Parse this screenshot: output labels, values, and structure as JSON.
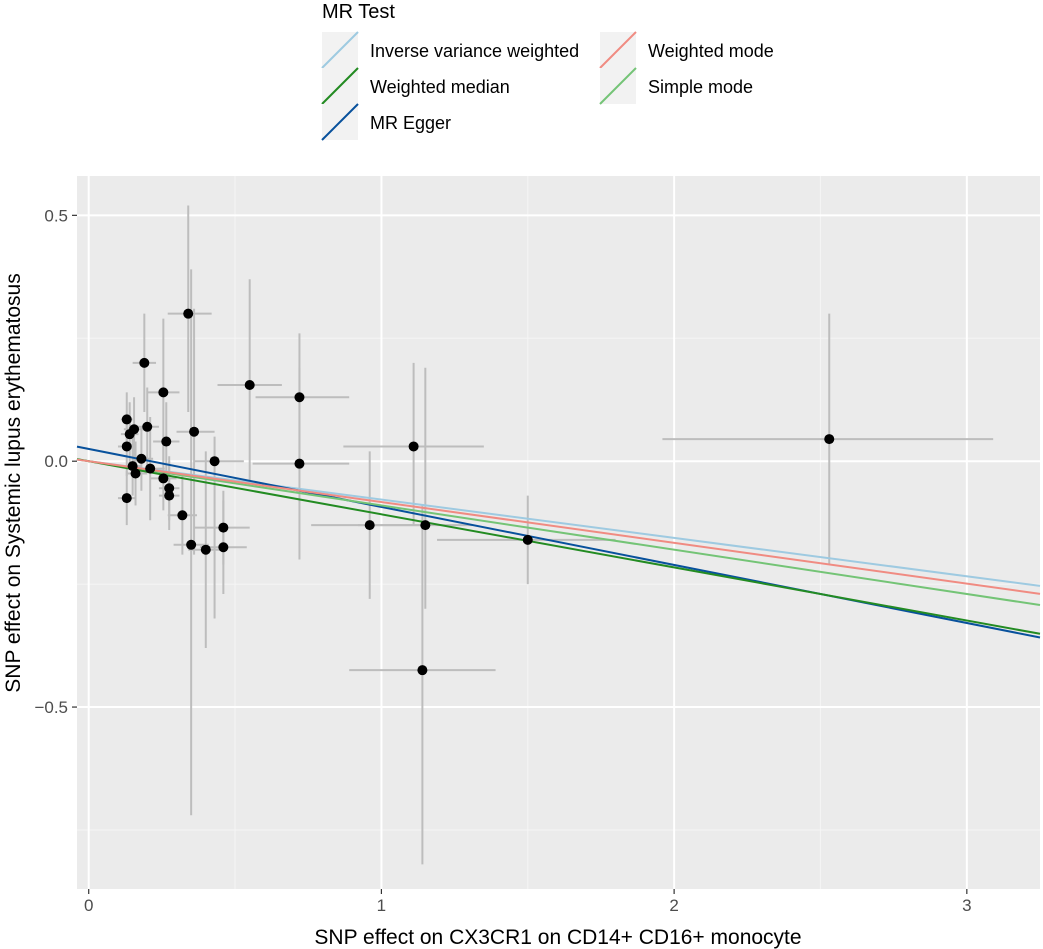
{
  "chart_data": {
    "type": "scatter",
    "title": "",
    "xlabel": "SNP effect on CX3CR1 on CD14+ CD16+ monocyte",
    "ylabel": "SNP effect on Systemic lupus erythematosus",
    "xlim": [
      -0.04,
      3.25
    ],
    "ylim": [
      -0.87,
      0.58
    ],
    "x_ticks": [
      0,
      1,
      2,
      3
    ],
    "x_tick_labels": [
      "0",
      "1",
      "2",
      "3"
    ],
    "y_ticks": [
      0.5,
      0.0,
      -0.5
    ],
    "y_tick_labels": [
      "0.5",
      "0.0",
      "−0.5"
    ],
    "grid": true,
    "legend_position": "top",
    "legend_title": "MR Test",
    "error_bar_color": "#bdbdbd",
    "point_color": "#000000",
    "panel_background": "#ebebeb",
    "points": [
      {
        "x": 0.13,
        "y": 0.085,
        "x_lo": 0.11,
        "x_hi": 0.15,
        "y_lo": 0.02,
        "y_hi": 0.14
      },
      {
        "x": 0.14,
        "y": 0.055,
        "x_lo": 0.11,
        "x_hi": 0.17,
        "y_lo": -0.01,
        "y_hi": 0.12
      },
      {
        "x": 0.13,
        "y": 0.03,
        "x_lo": 0.1,
        "x_hi": 0.16,
        "y_lo": -0.03,
        "y_hi": 0.09
      },
      {
        "x": 0.155,
        "y": 0.065,
        "x_lo": 0.12,
        "x_hi": 0.19,
        "y_lo": 0.0,
        "y_hi": 0.13
      },
      {
        "x": 0.13,
        "y": -0.075,
        "x_lo": 0.1,
        "x_hi": 0.16,
        "y_lo": -0.13,
        "y_hi": -0.02
      },
      {
        "x": 0.15,
        "y": -0.01,
        "x_lo": 0.12,
        "x_hi": 0.18,
        "y_lo": -0.07,
        "y_hi": 0.05
      },
      {
        "x": 0.16,
        "y": -0.025,
        "x_lo": 0.13,
        "x_hi": 0.2,
        "y_lo": -0.09,
        "y_hi": 0.04
      },
      {
        "x": 0.18,
        "y": 0.005,
        "x_lo": 0.15,
        "x_hi": 0.22,
        "y_lo": -0.06,
        "y_hi": 0.07
      },
      {
        "x": 0.19,
        "y": 0.2,
        "x_lo": 0.15,
        "x_hi": 0.23,
        "y_lo": 0.1,
        "y_hi": 0.3
      },
      {
        "x": 0.2,
        "y": 0.07,
        "x_lo": 0.16,
        "x_hi": 0.24,
        "y_lo": -0.02,
        "y_hi": 0.15
      },
      {
        "x": 0.21,
        "y": -0.015,
        "x_lo": 0.17,
        "x_hi": 0.26,
        "y_lo": -0.12,
        "y_hi": 0.09
      },
      {
        "x": 0.255,
        "y": 0.14,
        "x_lo": 0.2,
        "x_hi": 0.31,
        "y_lo": 0.0,
        "y_hi": 0.29
      },
      {
        "x": 0.255,
        "y": -0.035,
        "x_lo": 0.21,
        "x_hi": 0.3,
        "y_lo": -0.1,
        "y_hi": 0.03
      },
      {
        "x": 0.265,
        "y": 0.04,
        "x_lo": 0.22,
        "x_hi": 0.31,
        "y_lo": -0.04,
        "y_hi": 0.12
      },
      {
        "x": 0.275,
        "y": -0.055,
        "x_lo": 0.24,
        "x_hi": 0.31,
        "y_lo": -0.12,
        "y_hi": 0.01
      },
      {
        "x": 0.275,
        "y": -0.07,
        "x_lo": 0.24,
        "x_hi": 0.31,
        "y_lo": -0.14,
        "y_hi": 0.0
      },
      {
        "x": 0.32,
        "y": -0.11,
        "x_lo": 0.27,
        "x_hi": 0.37,
        "y_lo": -0.19,
        "y_hi": -0.03
      },
      {
        "x": 0.34,
        "y": 0.3,
        "x_lo": 0.27,
        "x_hi": 0.42,
        "y_lo": 0.1,
        "y_hi": 0.52
      },
      {
        "x": 0.35,
        "y": -0.17,
        "x_lo": 0.29,
        "x_hi": 0.41,
        "y_lo": -0.72,
        "y_hi": 0.39
      },
      {
        "x": 0.36,
        "y": 0.06,
        "x_lo": 0.3,
        "x_hi": 0.43,
        "y_lo": -0.19,
        "y_hi": 0.31
      },
      {
        "x": 0.4,
        "y": -0.18,
        "x_lo": 0.34,
        "x_hi": 0.46,
        "y_lo": -0.38,
        "y_hi": 0.02
      },
      {
        "x": 0.43,
        "y": 0.0,
        "x_lo": 0.36,
        "x_hi": 0.53,
        "y_lo": -0.32,
        "y_hi": 0.05
      },
      {
        "x": 0.46,
        "y": -0.135,
        "x_lo": 0.36,
        "x_hi": 0.55,
        "y_lo": -0.21,
        "y_hi": -0.06
      },
      {
        "x": 0.46,
        "y": -0.175,
        "x_lo": 0.38,
        "x_hi": 0.54,
        "y_lo": -0.27,
        "y_hi": -0.08
      },
      {
        "x": 0.55,
        "y": 0.155,
        "x_lo": 0.44,
        "x_hi": 0.66,
        "y_lo": -0.05,
        "y_hi": 0.37
      },
      {
        "x": 0.72,
        "y": 0.13,
        "x_lo": 0.57,
        "x_hi": 0.89,
        "y_lo": 0.0,
        "y_hi": 0.26
      },
      {
        "x": 0.72,
        "y": -0.005,
        "x_lo": 0.56,
        "x_hi": 0.89,
        "y_lo": -0.2,
        "y_hi": 0.19
      },
      {
        "x": 0.96,
        "y": -0.13,
        "x_lo": 0.76,
        "x_hi": 1.13,
        "y_lo": -0.28,
        "y_hi": 0.02
      },
      {
        "x": 1.11,
        "y": 0.03,
        "x_lo": 0.87,
        "x_hi": 1.35,
        "y_lo": -0.13,
        "y_hi": 0.2
      },
      {
        "x": 1.15,
        "y": -0.13,
        "x_lo": 0.92,
        "x_hi": 1.31,
        "y_lo": -0.3,
        "y_hi": 0.19
      },
      {
        "x": 1.14,
        "y": -0.425,
        "x_lo": 0.89,
        "x_hi": 1.39,
        "y_lo": -0.82,
        "y_hi": -0.09
      },
      {
        "x": 1.5,
        "y": -0.16,
        "x_lo": 1.19,
        "x_hi": 1.8,
        "y_lo": -0.25,
        "y_hi": -0.07
      },
      {
        "x": 2.53,
        "y": 0.045,
        "x_lo": 1.96,
        "x_hi": 3.09,
        "y_lo": -0.21,
        "y_hi": 0.3
      }
    ],
    "series": [
      {
        "name": "Inverse variance weighted",
        "color": "#9ecae1",
        "intercept": 0.0,
        "slope": -0.078
      },
      {
        "name": "MR Egger",
        "color": "#08519c",
        "intercept": 0.025,
        "slope": -0.118
      },
      {
        "name": "Simple mode",
        "color": "#74c476",
        "intercept": 0.0,
        "slope": -0.09
      },
      {
        "name": "Weighted median",
        "color": "#238b22",
        "intercept": 0.0,
        "slope": -0.108
      },
      {
        "name": "Weighted mode",
        "color": "#f08b82",
        "intercept": 0.0,
        "slope": -0.083
      }
    ],
    "legend_order": [
      0,
      3,
      1,
      4,
      2
    ]
  }
}
